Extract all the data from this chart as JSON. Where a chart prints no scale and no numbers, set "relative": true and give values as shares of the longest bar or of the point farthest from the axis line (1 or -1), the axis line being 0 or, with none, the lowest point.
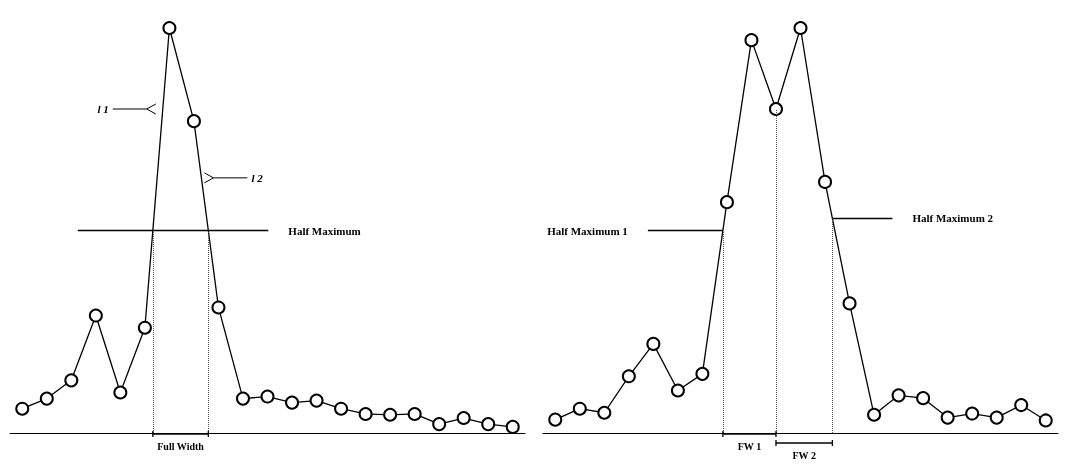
{
  "chart_data": [
    {
      "type": "line",
      "relative": true,
      "marker": "circle",
      "grid": false,
      "categories": [
        null,
        null,
        null,
        null,
        null,
        null,
        null,
        null,
        null,
        null,
        null,
        null,
        null,
        null,
        null,
        null,
        null,
        null,
        null,
        null,
        null
      ],
      "series": [
        {
          "color": "#000000",
          "values": [
            0.06,
            0.085,
            0.13,
            0.29,
            0.1,
            0.26,
            1.0,
            0.77,
            0.31,
            0.085,
            0.09,
            0.075,
            0.08,
            0.06,
            0.047,
            0.045,
            0.047,
            0.022,
            0.037,
            0.022,
            0.015
          ]
        }
      ],
      "ref_lines": [
        {
          "axis": "y",
          "value": 0.5,
          "label": "Half Maximum",
          "color": "#000000"
        }
      ],
      "annotations": [
        "l 1",
        "l 2",
        "Full Width"
      ]
    },
    {
      "type": "line",
      "relative": true,
      "marker": "circle",
      "grid": false,
      "categories": [
        null,
        null,
        null,
        null,
        null,
        null,
        null,
        null,
        null,
        null,
        null,
        null,
        null,
        null,
        null,
        null,
        null,
        null,
        null,
        null,
        null
      ],
      "series": [
        {
          "color": "#000000",
          "values": [
            0.033,
            0.06,
            0.05,
            0.14,
            0.22,
            0.105,
            0.146,
            0.57,
            0.97,
            0.8,
            1.0,
            0.62,
            0.32,
            0.045,
            0.093,
            0.086,
            0.038,
            0.048,
            0.038,
            0.069,
            0.031
          ]
        }
      ],
      "ref_lines": [
        {
          "axis": "y",
          "value": 0.5,
          "label": "Half Maximum 1",
          "color": "#000000"
        },
        {
          "axis": "y",
          "value": 0.53,
          "label": "Half Maximum 2",
          "color": "#000000"
        }
      ],
      "annotations": [
        "FW 1",
        "FW 2"
      ]
    }
  ]
}
